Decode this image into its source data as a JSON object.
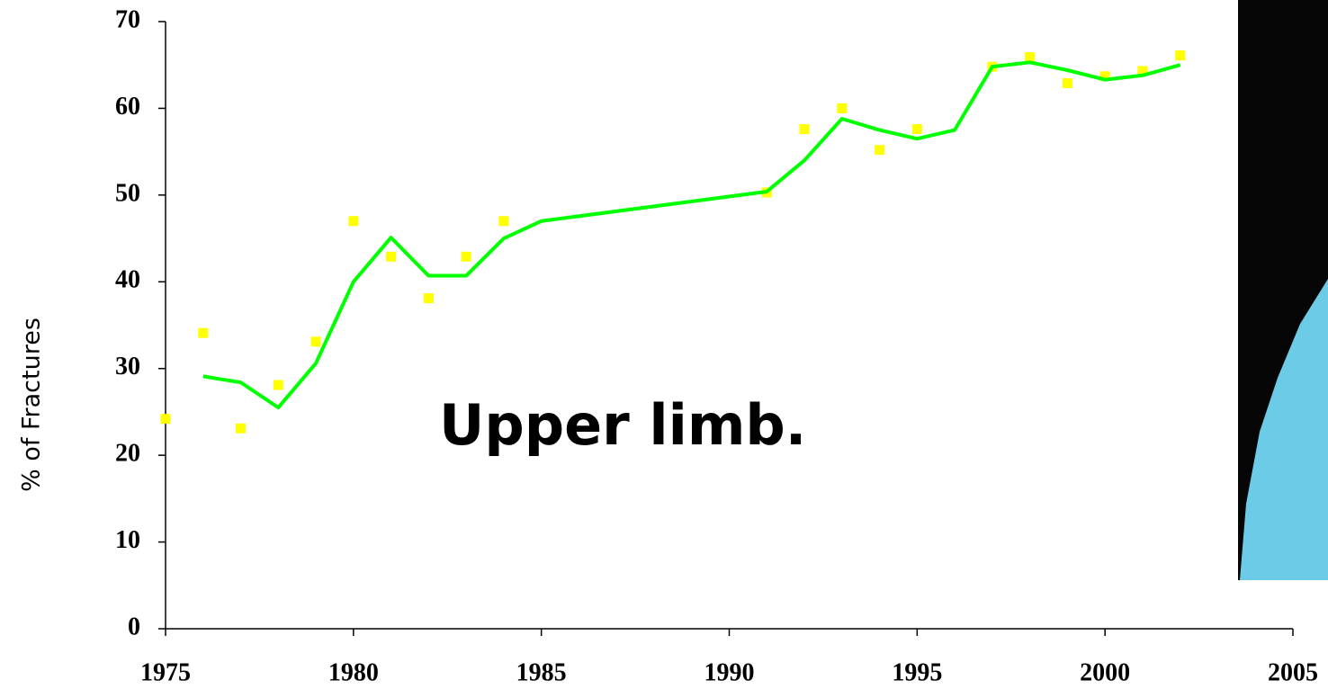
{
  "chart_data": {
    "type": "line",
    "y_label": "% of Fractures",
    "annotation": "Upper limb.",
    "xlim": [
      1975,
      2005
    ],
    "xticks": [
      1975,
      1980,
      1985,
      1990,
      1995,
      2000,
      2005
    ],
    "ylim": [
      0,
      70
    ],
    "yticks": [
      0,
      10,
      20,
      30,
      40,
      50,
      60,
      70
    ],
    "grid": false,
    "series": [
      {
        "type": "scatter",
        "color": "#ffff00",
        "x": [
          1975,
          1976,
          1977,
          1978,
          1979,
          1980,
          1981,
          1982,
          1983,
          1984,
          1991,
          1992,
          1993,
          1994,
          1995,
          1997,
          1998,
          1999,
          2000,
          2001,
          2002
        ],
        "values": [
          24.2,
          34.1,
          23.1,
          28.1,
          33.1,
          47.0,
          42.9,
          38.1,
          42.9,
          47.0,
          50.3,
          57.6,
          60.0,
          55.2,
          57.6,
          64.8,
          65.9,
          62.9,
          63.7,
          64.3,
          66.1
        ]
      },
      {
        "type": "line",
        "color": "#00ff00",
        "x": [
          1976,
          1977,
          1978,
          1979,
          1980,
          1981,
          1982,
          1983,
          1984,
          1985,
          1991,
          1992,
          1993,
          1994,
          1995,
          1996,
          1997,
          1998,
          1999,
          2000,
          2001,
          2002
        ],
        "values": [
          29.1,
          28.4,
          25.5,
          30.6,
          40.0,
          45.1,
          40.7,
          40.7,
          45.0,
          47.0,
          50.4,
          54.0,
          58.8,
          57.5,
          56.5,
          57.5,
          64.8,
          65.3,
          64.4,
          63.3,
          63.8,
          65.0
        ]
      }
    ]
  }
}
